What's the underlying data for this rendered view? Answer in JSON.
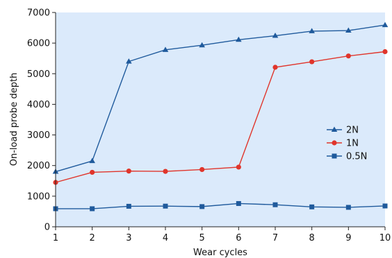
{
  "chart_data": {
    "type": "line",
    "title": "",
    "xlabel": "Wear cycles",
    "ylabel": "On-load probe depth",
    "x": [
      1,
      2,
      3,
      4,
      5,
      6,
      7,
      8,
      9,
      10
    ],
    "xlim": [
      1,
      10
    ],
    "ylim": [
      0,
      7000
    ],
    "yticks": [
      0,
      1000,
      2000,
      3000,
      4000,
      5000,
      6000,
      7000
    ],
    "grid": false,
    "legend_position": "right",
    "plot_background": "#dbeafb",
    "series": [
      {
        "name": "2N",
        "color": "#1f5a9c",
        "marker": "triangle",
        "values": [
          1800,
          2150,
          5400,
          5780,
          5930,
          6110,
          6240,
          6390,
          6410,
          6590
        ]
      },
      {
        "name": "1N",
        "color": "#e0352b",
        "marker": "circle",
        "values": [
          1450,
          1780,
          1820,
          1810,
          1870,
          1950,
          5210,
          5390,
          5580,
          5720
        ]
      },
      {
        "name": "0.5N",
        "color": "#1f5a9c",
        "marker": "square",
        "values": [
          590,
          590,
          670,
          675,
          660,
          760,
          720,
          650,
          635,
          680
        ]
      }
    ]
  }
}
